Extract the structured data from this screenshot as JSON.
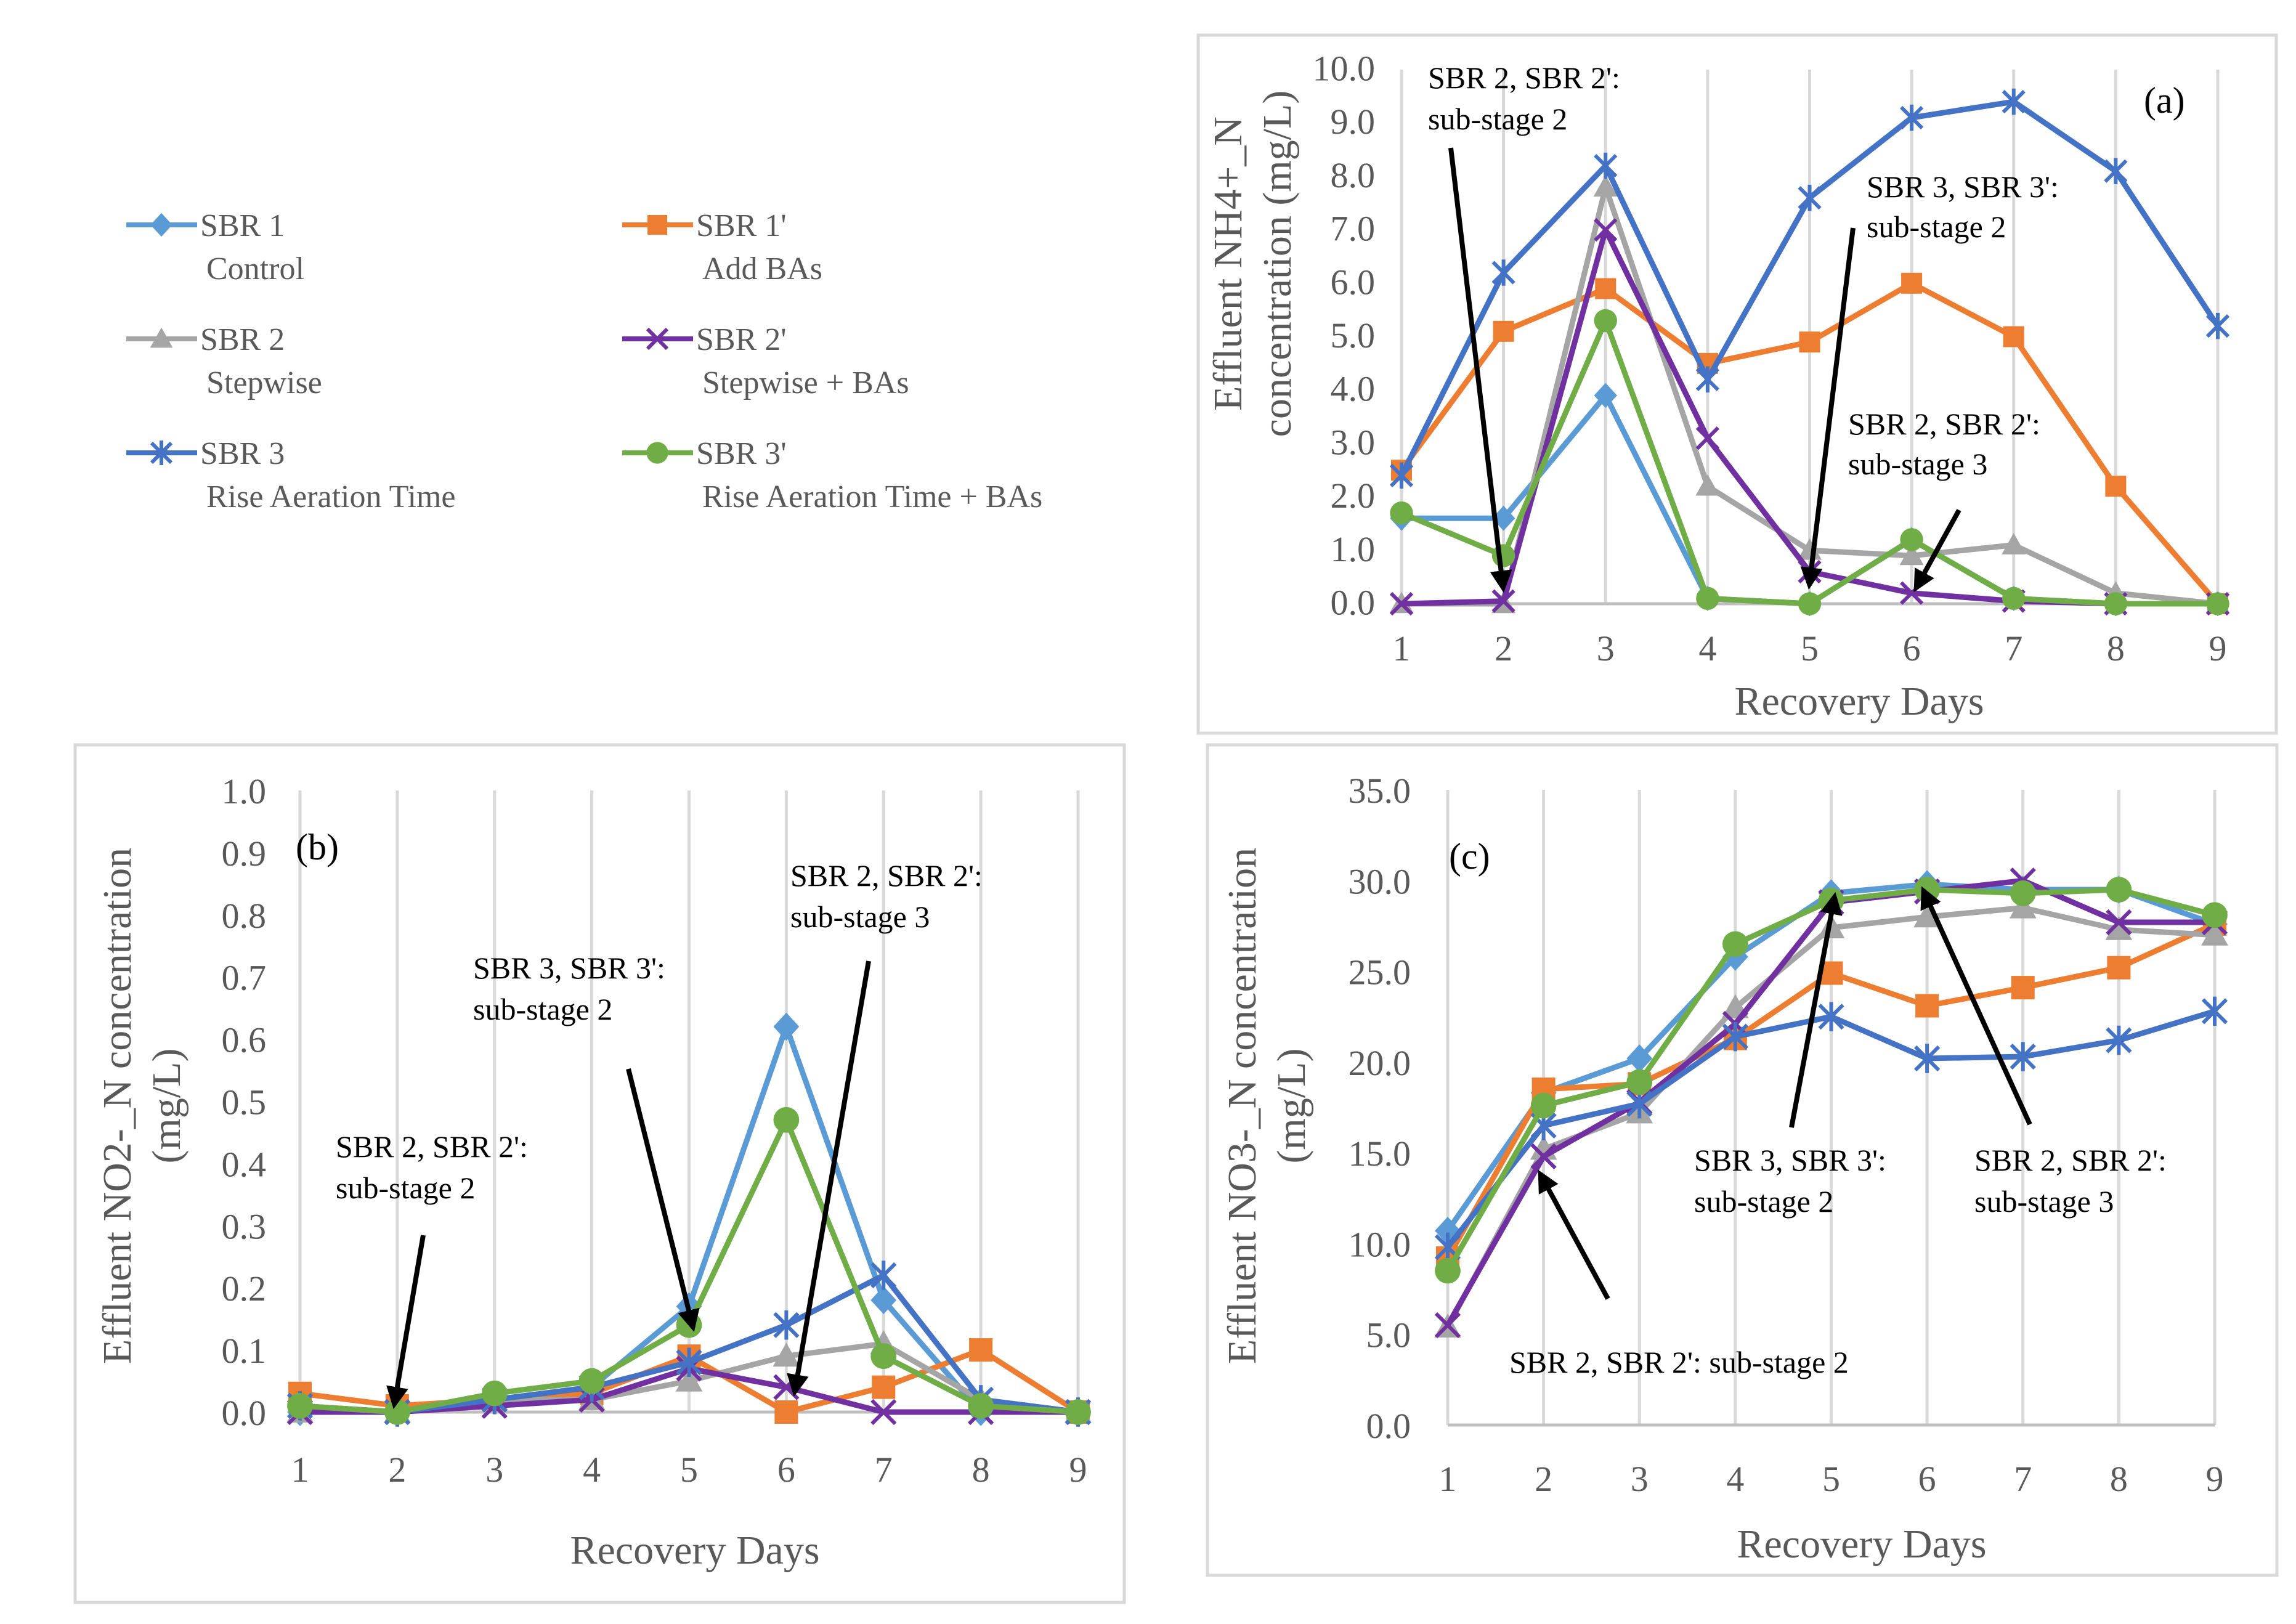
{
  "x_axis_label": "Recovery Days",
  "legend": [
    {
      "name": "SBR 1",
      "desc": "Control",
      "color": "#5b9bd5",
      "marker": "diamond"
    },
    {
      "name": "SBR 1'",
      "desc": "Add BAs",
      "color": "#ed7d31",
      "marker": "square"
    },
    {
      "name": "SBR 2",
      "desc": "Stepwise",
      "color": "#a5a5a5",
      "marker": "triangle"
    },
    {
      "name": "SBR 2'",
      "desc": "Stepwise + BAs",
      "color": "#7030a0",
      "marker": "x"
    },
    {
      "name": "SBR 3",
      "desc": "Rise Aeration Time",
      "color": "#4472c4",
      "marker": "star"
    },
    {
      "name": "SBR 3'",
      "desc": "Rise Aeration Time + BAs",
      "color": "#70ad47",
      "marker": "circle"
    }
  ],
  "chart_data": [
    {
      "type": "line",
      "panel": "(a)",
      "title": "",
      "xlabel": "Recovery Days",
      "ylabel_line1": "Effluent NH4+_N",
      "ylabel_line2": "concentration (mg/L)",
      "x": [
        1,
        2,
        3,
        4,
        5,
        6,
        7,
        8,
        9
      ],
      "ylim": [
        0,
        10
      ],
      "yticks": [
        "0.0",
        "1.0",
        "2.0",
        "3.0",
        "4.0",
        "5.0",
        "6.0",
        "7.0",
        "8.0",
        "9.0",
        "10.0"
      ],
      "series": [
        {
          "name": "SBR 1",
          "values": [
            1.6,
            1.6,
            3.9,
            0.1,
            0.0,
            1.2,
            0.1,
            0.0,
            0.0
          ]
        },
        {
          "name": "SBR 1'",
          "values": [
            2.5,
            5.1,
            5.9,
            4.5,
            4.9,
            6.0,
            5.0,
            2.2,
            0.0
          ]
        },
        {
          "name": "SBR 2",
          "values": [
            0.0,
            0.0,
            7.8,
            2.2,
            1.0,
            0.9,
            1.1,
            0.2,
            0.0
          ]
        },
        {
          "name": "SBR 2'",
          "values": [
            0.0,
            0.05,
            7.0,
            3.1,
            0.6,
            0.2,
            0.05,
            0.0,
            0.0
          ]
        },
        {
          "name": "SBR 3",
          "values": [
            2.4,
            6.2,
            8.2,
            4.2,
            7.6,
            9.1,
            9.4,
            8.1,
            5.2
          ]
        },
        {
          "name": "SBR 3'",
          "values": [
            1.7,
            0.9,
            5.3,
            0.1,
            0.0,
            1.2,
            0.1,
            0.0,
            0.0
          ]
        }
      ],
      "annotations": [
        {
          "lines": [
            "SBR 2, SBR 2':",
            "sub-stage 2"
          ]
        },
        {
          "lines": [
            "SBR 3, SBR 3':",
            "sub-stage 2"
          ]
        },
        {
          "lines": [
            "SBR 2, SBR 2':",
            "sub-stage 3"
          ]
        }
      ]
    },
    {
      "type": "line",
      "panel": "(b)",
      "title": "",
      "xlabel": "Recovery Days",
      "ylabel_line1": "Effluent NO2-_N concentration",
      "ylabel_line2": "(mg/L)",
      "x": [
        1,
        2,
        3,
        4,
        5,
        6,
        7,
        8,
        9
      ],
      "ylim": [
        0,
        1
      ],
      "yticks": [
        "0.0",
        "0.1",
        "0.2",
        "0.3",
        "0.4",
        "0.5",
        "0.6",
        "0.7",
        "0.8",
        "0.9",
        "1.0"
      ],
      "series": [
        {
          "name": "SBR 1",
          "values": [
            0.0,
            0.0,
            0.02,
            0.04,
            0.17,
            0.62,
            0.18,
            0.0,
            0.0
          ]
        },
        {
          "name": "SBR 1'",
          "values": [
            0.03,
            0.01,
            0.02,
            0.03,
            0.09,
            0.0,
            0.04,
            0.1,
            0.0
          ]
        },
        {
          "name": "SBR 2",
          "values": [
            0.0,
            0.0,
            0.02,
            0.02,
            0.05,
            0.09,
            0.11,
            0.02,
            0.0
          ]
        },
        {
          "name": "SBR 2'",
          "values": [
            0.0,
            0.0,
            0.01,
            0.02,
            0.07,
            0.04,
            0.0,
            0.0,
            0.0
          ]
        },
        {
          "name": "SBR 3",
          "values": [
            0.01,
            0.0,
            0.02,
            0.04,
            0.08,
            0.14,
            0.22,
            0.02,
            0.0
          ]
        },
        {
          "name": "SBR 3'",
          "values": [
            0.01,
            0.0,
            0.03,
            0.05,
            0.14,
            0.47,
            0.09,
            0.01,
            0.0
          ]
        }
      ],
      "annotations": [
        {
          "lines": [
            "SBR 2, SBR 2':",
            "sub-stage 2"
          ]
        },
        {
          "lines": [
            "SBR 3, SBR 3':",
            "sub-stage 2"
          ]
        },
        {
          "lines": [
            "SBR 2, SBR 2':",
            "sub-stage 3"
          ]
        }
      ]
    },
    {
      "type": "line",
      "panel": "(c)",
      "title": "",
      "xlabel": "Recovery Days",
      "ylabel_line1": "Effluent NO3-_N concentration",
      "ylabel_line2": "(mg/L)",
      "x": [
        1,
        2,
        3,
        4,
        5,
        6,
        7,
        8,
        9
      ],
      "ylim": [
        0,
        35
      ],
      "yticks": [
        "0.0",
        "5.0",
        "10.0",
        "15.0",
        "20.0",
        "25.0",
        "30.0",
        "35.0"
      ],
      "series": [
        {
          "name": "SBR 1",
          "values": [
            10.7,
            18.3,
            20.2,
            25.8,
            29.3,
            29.8,
            29.5,
            29.5,
            27.6
          ]
        },
        {
          "name": "SBR 1'",
          "values": [
            9.2,
            18.5,
            18.8,
            21.3,
            24.9,
            23.1,
            24.1,
            25.2,
            27.6
          ]
        },
        {
          "name": "SBR 2",
          "values": [
            5.4,
            15.2,
            17.2,
            23.0,
            27.4,
            28.0,
            28.5,
            27.3,
            27.0
          ]
        },
        {
          "name": "SBR 2'",
          "values": [
            5.5,
            14.8,
            17.8,
            22.1,
            28.8,
            29.4,
            30.0,
            27.7,
            27.7
          ]
        },
        {
          "name": "SBR 3",
          "values": [
            9.8,
            16.5,
            17.7,
            21.4,
            22.5,
            20.2,
            20.3,
            21.2,
            22.8
          ]
        },
        {
          "name": "SBR 3'",
          "values": [
            8.5,
            17.6,
            18.9,
            26.5,
            28.9,
            29.5,
            29.3,
            29.5,
            28.1
          ]
        }
      ],
      "annotations": [
        {
          "lines": [
            "SBR 3, SBR 3':",
            "sub-stage 2"
          ]
        },
        {
          "lines": [
            "SBR 2, SBR 2':",
            "sub-stage 3"
          ]
        },
        {
          "lines": [
            "SBR 2, SBR 2': sub-stage 2"
          ]
        }
      ]
    }
  ]
}
